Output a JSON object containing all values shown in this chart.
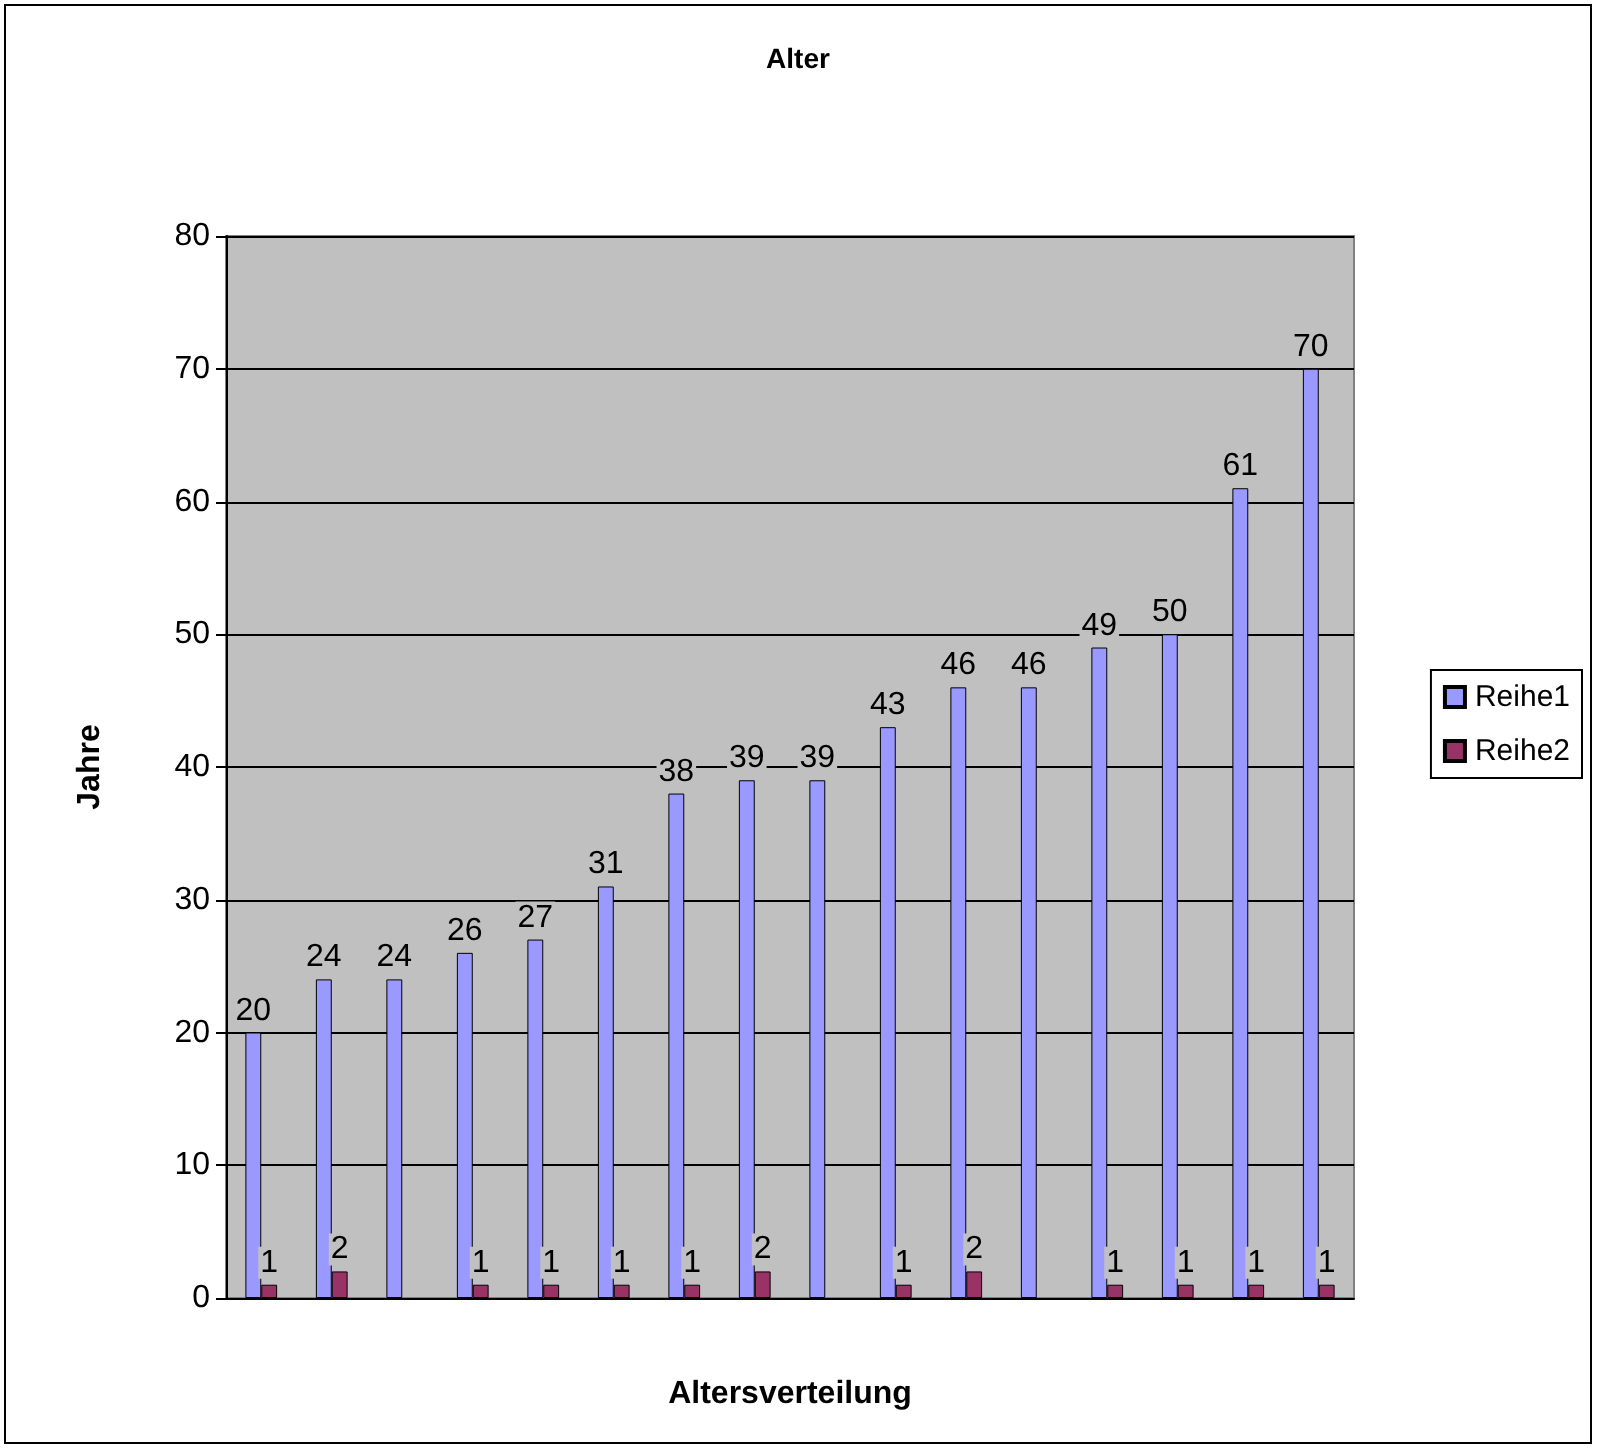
{
  "chart_data": {
    "type": "bar",
    "title": "Alter",
    "xlabel": "Altersverteilung",
    "ylabel": "Jahre",
    "categories": [
      null,
      null,
      null,
      null,
      null,
      null,
      null,
      null,
      null,
      null,
      null,
      null,
      null,
      null,
      null,
      null
    ],
    "series": [
      {
        "name": "Reihe1",
        "color": "#9999ff",
        "values": [
          20,
          24,
          24,
          26,
          27,
          31,
          38,
          39,
          39,
          43,
          46,
          46,
          49,
          50,
          61,
          70
        ]
      },
      {
        "name": "Reihe2",
        "color": "#993366",
        "values": [
          1,
          2,
          null,
          1,
          1,
          1,
          1,
          2,
          null,
          1,
          2,
          null,
          1,
          1,
          1,
          1
        ]
      }
    ],
    "ylim": [
      0,
      80
    ],
    "yticks": [
      0,
      10,
      20,
      30,
      40,
      50,
      60,
      70,
      80
    ],
    "grid": "y",
    "legend": "right",
    "data_labels": true
  }
}
